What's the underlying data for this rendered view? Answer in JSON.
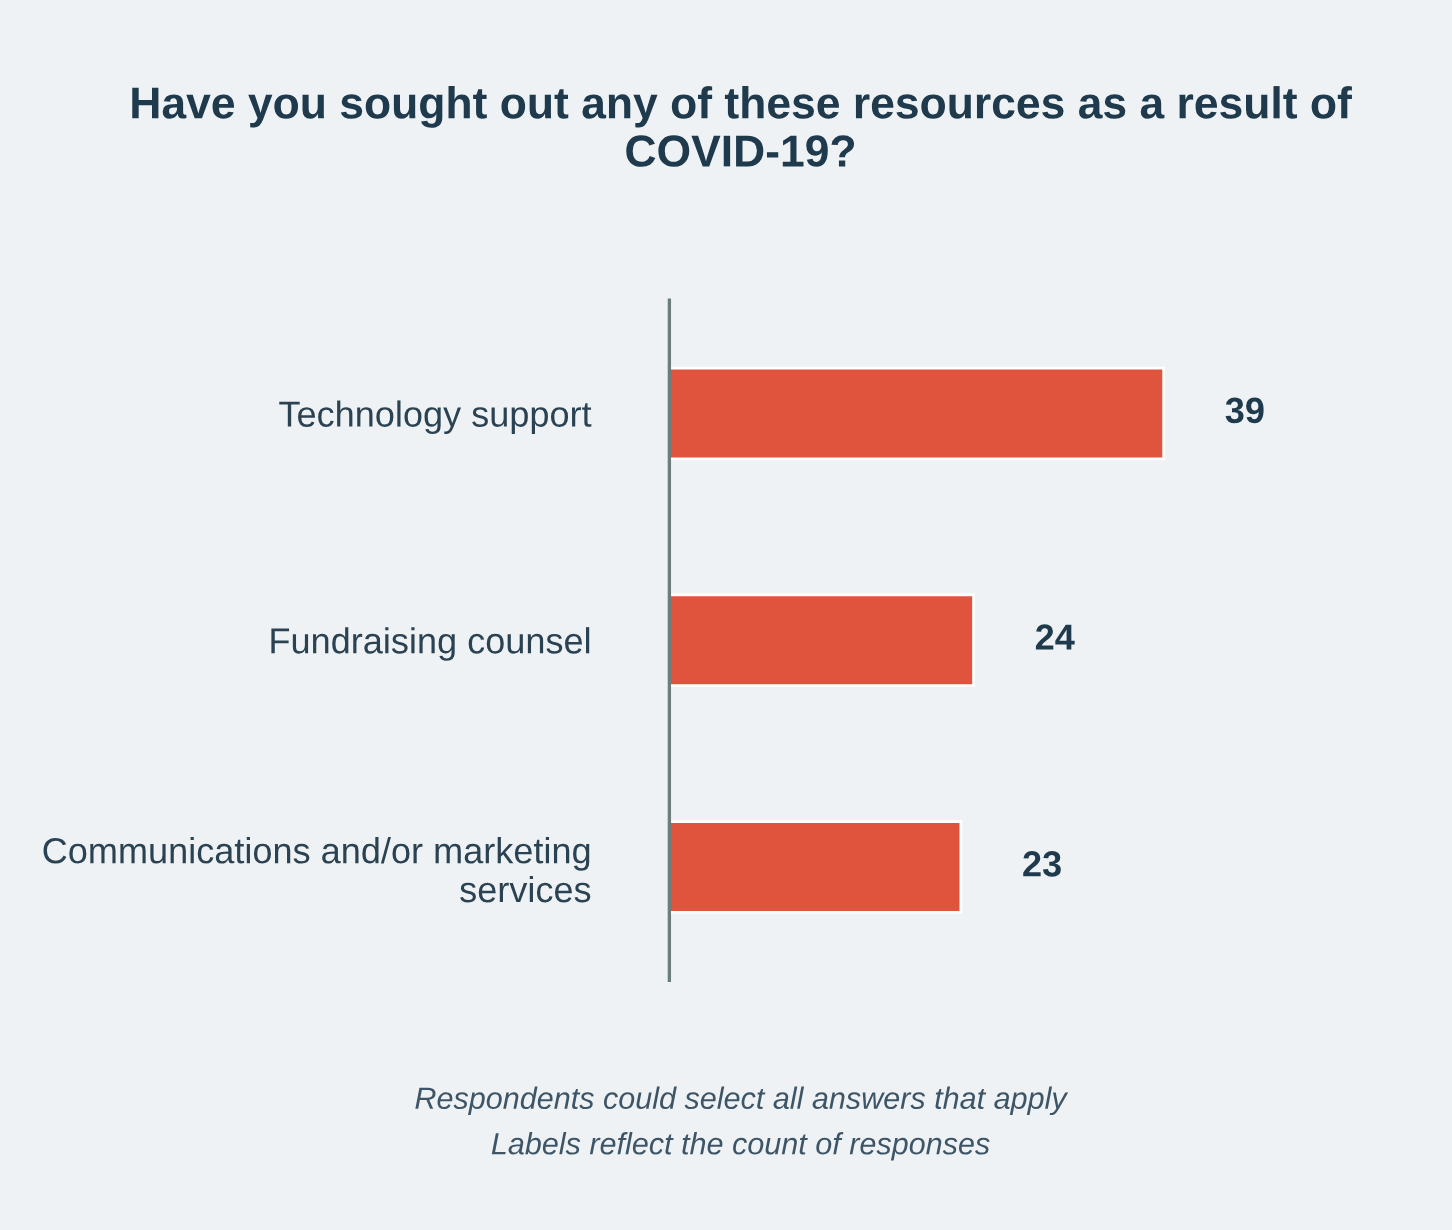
{
  "chart_data": {
    "type": "bar",
    "orientation": "horizontal",
    "title": "Have you sought out any of these resources as a result of COVID-19?",
    "categories": [
      "Technology support",
      "Fundraising counsel",
      "Communications and/or marketing services"
    ],
    "values": [
      39,
      24,
      23
    ],
    "color": "#e0533d",
    "data_labels": true,
    "tick_labels": "y",
    "grid": false,
    "legend": false,
    "annotations": [
      "Respondents could select all answers that apply",
      "Labels reflect the count of responses"
    ]
  }
}
